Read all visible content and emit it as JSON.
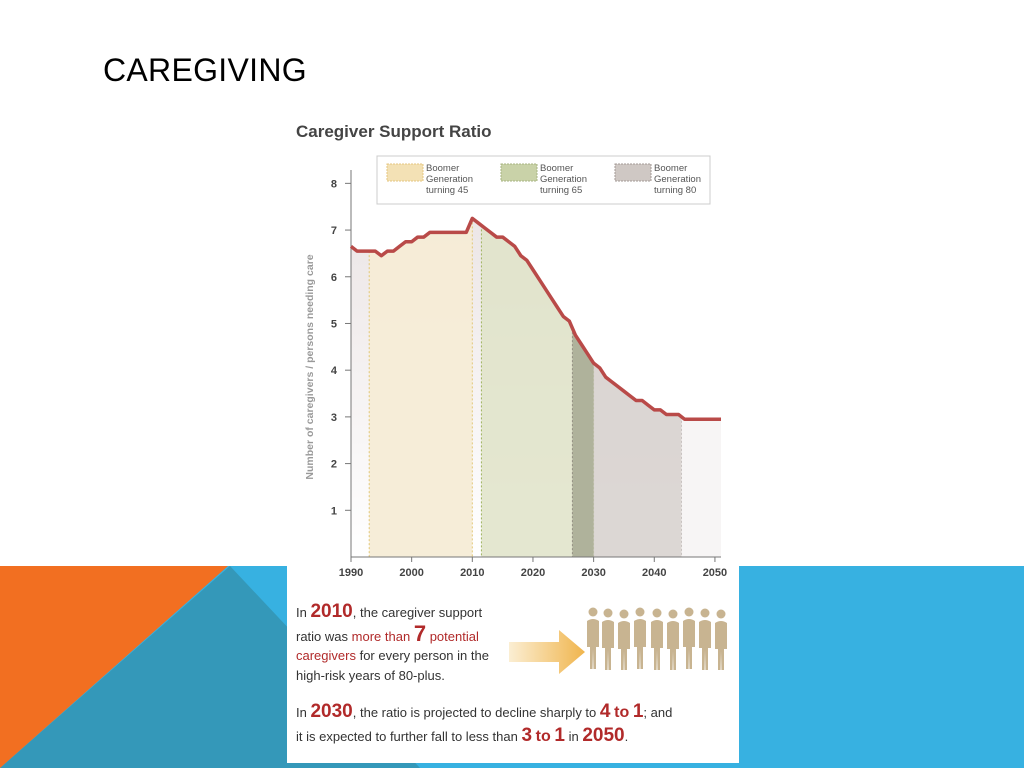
{
  "slide": {
    "title": "CAREGIVING"
  },
  "colors": {
    "orange": "#f26f21",
    "blue": "#37b1e1",
    "steel": "#3498b9",
    "line": "#b94a48",
    "accent_red": "#b12a2a"
  },
  "chart_data": {
    "type": "area",
    "title": "Caregiver Support Ratio",
    "ylabel": "Number of caregivers / persons needing care",
    "xlabel": "",
    "xlim": [
      1990,
      2051
    ],
    "ylim": [
      0,
      8.5
    ],
    "x_ticks": [
      1990,
      2000,
      2010,
      2020,
      2030,
      2040,
      2050
    ],
    "y_ticks": [
      1,
      2,
      3,
      4,
      5,
      6,
      7,
      8
    ],
    "legend": [
      {
        "label": [
          "Boomer",
          "Generation",
          "turning 45"
        ],
        "color": "#f3e1b5"
      },
      {
        "label": [
          "Boomer",
          "Generation",
          "turning 65"
        ],
        "color": "#c9d2a8"
      },
      {
        "label": [
          "Boomer",
          "Generation",
          "turning 80"
        ],
        "color": "#cfc8c4"
      }
    ],
    "bands": [
      {
        "name": "Boomer Generation turning 45",
        "start": 1993,
        "end": 2010,
        "color": "#f6ecd6"
      },
      {
        "name": "Boomer Generation turning 65",
        "start": 2011.5,
        "end": 2030,
        "color": "#dfe3c8"
      },
      {
        "name": "Boomer Generation turning 80",
        "start": 2026.5,
        "end": 2044.5,
        "color": "#d6d0cc"
      }
    ],
    "series": [
      {
        "name": "Caregiver support ratio",
        "x": [
          1990,
          1991,
          1993,
          1994,
          1995,
          1996,
          1997,
          1998,
          1999,
          2000,
          2001,
          2002,
          2003,
          2004,
          2005,
          2006,
          2007,
          2008,
          2009,
          2010,
          2011,
          2012,
          2013,
          2014,
          2015,
          2016,
          2017,
          2018,
          2019,
          2020,
          2021,
          2022,
          2023,
          2024,
          2025,
          2026,
          2027,
          2028,
          2029,
          2030,
          2031,
          2032,
          2033,
          2034,
          2035,
          2036,
          2037,
          2038,
          2039,
          2040,
          2041,
          2042,
          2043,
          2044,
          2045,
          2046,
          2047,
          2048,
          2049,
          2050,
          2051
        ],
        "y": [
          6.65,
          6.55,
          6.55,
          6.55,
          6.45,
          6.55,
          6.55,
          6.65,
          6.75,
          6.75,
          6.85,
          6.85,
          6.95,
          6.95,
          6.95,
          6.95,
          6.95,
          6.95,
          6.95,
          7.25,
          7.15,
          7.05,
          6.95,
          6.85,
          6.85,
          6.75,
          6.65,
          6.45,
          6.35,
          6.15,
          5.95,
          5.75,
          5.55,
          5.35,
          5.15,
          5.05,
          4.75,
          4.55,
          4.35,
          4.15,
          4.05,
          3.85,
          3.75,
          3.65,
          3.55,
          3.45,
          3.35,
          3.35,
          3.25,
          3.15,
          3.15,
          3.05,
          3.05,
          3.05,
          2.95,
          2.95,
          2.95,
          2.95,
          2.95,
          2.95,
          2.95
        ]
      }
    ]
  },
  "caption": {
    "p1": {
      "in": "In",
      "year": "2010",
      "text1": ", the caregiver support",
      "text2": "ratio was",
      "more_than": "more than",
      "seven": "7",
      "potential": "potential",
      "caregivers": "caregivers",
      "text3": "for every person in the",
      "text4": "high-risk years of 80-plus."
    },
    "p2": {
      "in": "In",
      "year": "2030",
      "text1": ", the ratio is projected to decline sharply to",
      "four": "4",
      "to1": "to",
      "one1": "1",
      "semi": ";",
      "and": "and",
      "text2": "it is expected to further fall to less than",
      "three": "3",
      "to2": "to",
      "one2": "1",
      "in2": "in",
      "year2": "2050",
      "period": "."
    }
  }
}
